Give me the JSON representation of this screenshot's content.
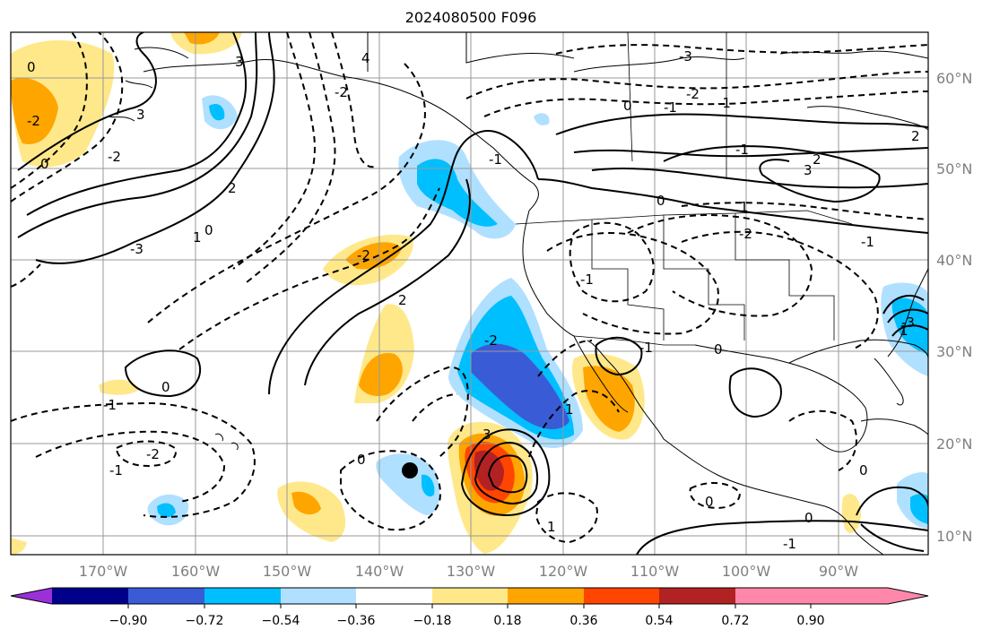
{
  "title": "2024080500 F096",
  "map": {
    "lon_ticks": [
      "170°W",
      "160°W",
      "150°W",
      "140°W",
      "130°W",
      "120°W",
      "110°W",
      "100°W",
      "90°W"
    ],
    "lat_ticks": [
      "60°N",
      "50°N",
      "40°N",
      "30°N",
      "20°N",
      "10°N"
    ],
    "marker": "storm-center-dot"
  },
  "colorbar": {
    "tick_labels": [
      "−0.90",
      "−0.72",
      "−0.54",
      "−0.36",
      "−0.18",
      "0.18",
      "0.36",
      "0.54",
      "0.72",
      "0.90"
    ],
    "colors": [
      "#9b30d9",
      "#00008b",
      "#3a5bd6",
      "#00bfff",
      "#b0e0ff",
      "#ffffff",
      "#ffe88a",
      "#ffa500",
      "#ff4500",
      "#b22222",
      "#ff88aa"
    ]
  },
  "contour_labels": [
    "3",
    "4",
    "0",
    "3",
    "2",
    "1",
    "0",
    "-3",
    "-2",
    "-1",
    "-2",
    "2",
    "0",
    "-1",
    "-2",
    "0",
    "-2",
    "-1",
    "0",
    "-1",
    "-2",
    "-1",
    "3",
    "2",
    "1",
    "0",
    "-2",
    "-1",
    "0",
    "-3",
    "2",
    "-1",
    "1",
    "0",
    "1",
    "0",
    "-1",
    "3",
    "0",
    "-1",
    "1",
    "-2",
    "-2",
    "-3",
    "0",
    "-1"
  ]
}
